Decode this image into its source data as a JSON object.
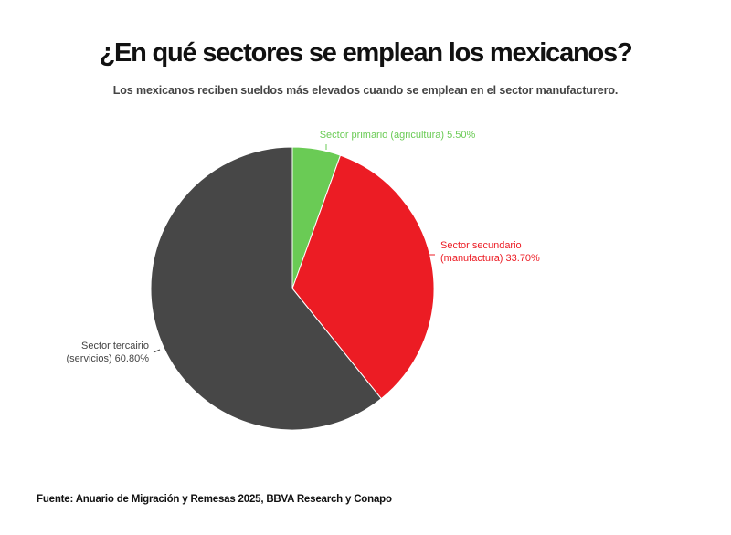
{
  "header": {
    "title": "¿En qué sectores se emplean los mexicanos?",
    "subtitle": "Los mexicanos reciben sueldos más elevados cuando se emplean en el sector manufacturero."
  },
  "footer": {
    "source": "Fuente: Anuario de Migración y Remesas 2025, BBVA Research y Conapo"
  },
  "chart_data": {
    "type": "pie",
    "title": "¿En qué sectores se emplean los mexicanos?",
    "start": "top, clockwise",
    "slices": [
      {
        "name": "Sector primario (agricultura)",
        "value": 5.5,
        "color": "#6acb55",
        "label_lines": [
          "Sector primario (agricultura) 5.50%"
        ]
      },
      {
        "name": "Sector secundario (manufactura)",
        "value": 33.7,
        "color": "#ec1c24",
        "label_lines": [
          "Sector secundario",
          "(manufactura) 33.70%"
        ]
      },
      {
        "name": "Sector tercairio (servicios)",
        "value": 60.8,
        "color": "#474747",
        "label_lines": [
          "Sector tercairio",
          "(servicios) 60.80%"
        ]
      }
    ]
  }
}
